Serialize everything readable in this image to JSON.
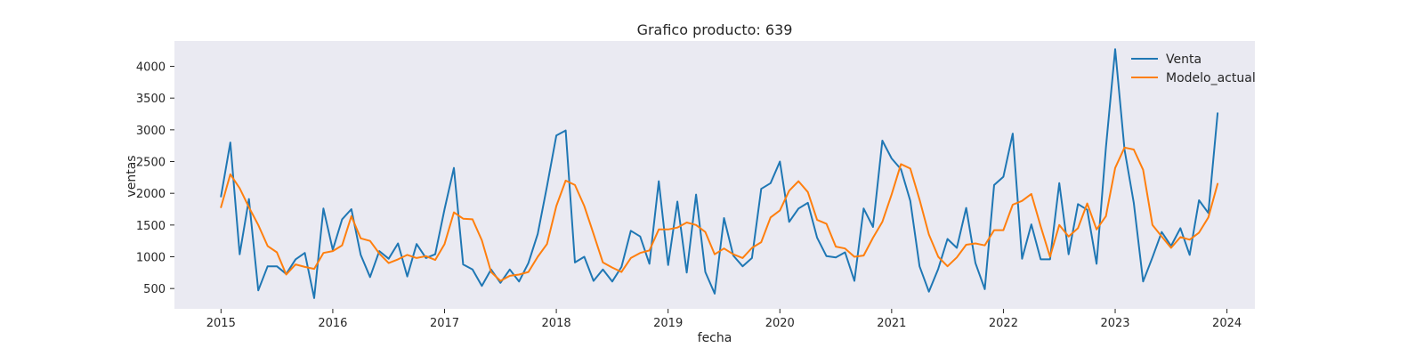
{
  "chart_data": {
    "type": "line",
    "title": "Grafico producto: 639",
    "xlabel": "fecha",
    "ylabel": "ventas",
    "x_ticks": [
      "2015",
      "2016",
      "2017",
      "2018",
      "2019",
      "2020",
      "2021",
      "2022",
      "2023",
      "2024"
    ],
    "y_ticks": [
      500,
      1000,
      1500,
      2000,
      2500,
      3000,
      3500,
      4000
    ],
    "xlim": [
      "2014-08-01",
      "2024-04-01"
    ],
    "ylim": [
      180,
      4400
    ],
    "grid": false,
    "legend_position": "top-right",
    "x": [
      "2015-01",
      "2015-02",
      "2015-03",
      "2015-04",
      "2015-05",
      "2015-06",
      "2015-07",
      "2015-08",
      "2015-09",
      "2015-10",
      "2015-11",
      "2015-12",
      "2016-01",
      "2016-02",
      "2016-03",
      "2016-04",
      "2016-05",
      "2016-06",
      "2016-07",
      "2016-08",
      "2016-09",
      "2016-10",
      "2016-11",
      "2016-12",
      "2017-01",
      "2017-02",
      "2017-03",
      "2017-04",
      "2017-05",
      "2017-06",
      "2017-07",
      "2017-08",
      "2017-09",
      "2017-10",
      "2017-11",
      "2017-12",
      "2018-01",
      "2018-02",
      "2018-03",
      "2018-04",
      "2018-05",
      "2018-06",
      "2018-07",
      "2018-08",
      "2018-09",
      "2018-10",
      "2018-11",
      "2018-12",
      "2019-01",
      "2019-02",
      "2019-03",
      "2019-04",
      "2019-05",
      "2019-06",
      "2019-07",
      "2019-08",
      "2019-09",
      "2019-10",
      "2019-11",
      "2019-12",
      "2020-01",
      "2020-02",
      "2020-03",
      "2020-04",
      "2020-05",
      "2020-06",
      "2020-07",
      "2020-08",
      "2020-09",
      "2020-10",
      "2020-11",
      "2020-12",
      "2021-01",
      "2021-02",
      "2021-03",
      "2021-04",
      "2021-05",
      "2021-06",
      "2021-07",
      "2021-08",
      "2021-09",
      "2021-10",
      "2021-11",
      "2021-12",
      "2022-01",
      "2022-02",
      "2022-03",
      "2022-04",
      "2022-05",
      "2022-06",
      "2022-07",
      "2022-08",
      "2022-09",
      "2022-10",
      "2022-11",
      "2022-12",
      "2023-01",
      "2023-02",
      "2023-03",
      "2023-04",
      "2023-05",
      "2023-06",
      "2023-07",
      "2023-08",
      "2023-09",
      "2023-10",
      "2023-11",
      "2023-12"
    ],
    "series": [
      {
        "name": "Venta",
        "color": "#1f77b4",
        "values": [
          1950,
          2800,
          1040,
          1910,
          470,
          850,
          850,
          730,
          960,
          1060,
          350,
          1760,
          1110,
          1590,
          1750,
          1030,
          680,
          1090,
          970,
          1210,
          690,
          1200,
          980,
          1040,
          1750,
          2400,
          880,
          800,
          540,
          800,
          590,
          800,
          610,
          900,
          1360,
          2110,
          2910,
          2990,
          910,
          1000,
          620,
          800,
          610,
          840,
          1410,
          1320,
          890,
          2190,
          870,
          1870,
          750,
          1980,
          760,
          420,
          1610,
          1020,
          850,
          980,
          2070,
          2160,
          2500,
          1550,
          1760,
          1850,
          1300,
          1010,
          990,
          1070,
          620,
          1760,
          1470,
          2830,
          2550,
          2380,
          1880,
          850,
          450,
          810,
          1280,
          1140,
          1770,
          900,
          490,
          2130,
          2260,
          2940,
          970,
          1510,
          960,
          960,
          2160,
          1040,
          1830,
          1740,
          890,
          2720,
          4270,
          2690,
          1850,
          610,
          990,
          1390,
          1170,
          1450,
          1030,
          1890,
          1690,
          3260
        ]
      },
      {
        "name": "Modelo_actual",
        "color": "#ff7f0e",
        "values": [
          1780,
          2300,
          2080,
          1780,
          1500,
          1170,
          1070,
          720,
          880,
          840,
          810,
          1060,
          1090,
          1180,
          1640,
          1290,
          1250,
          1050,
          900,
          960,
          1030,
          980,
          1010,
          950,
          1200,
          1700,
          1600,
          1590,
          1260,
          760,
          620,
          700,
          720,
          760,
          1000,
          1200,
          1800,
          2200,
          2130,
          1800,
          1360,
          910,
          830,
          760,
          980,
          1060,
          1100,
          1430,
          1430,
          1460,
          1540,
          1500,
          1390,
          1040,
          1130,
          1040,
          980,
          1140,
          1230,
          1620,
          1730,
          2040,
          2190,
          2020,
          1580,
          1520,
          1160,
          1130,
          1000,
          1020,
          1300,
          1550,
          1980,
          2460,
          2390,
          1900,
          1350,
          1000,
          850,
          990,
          1190,
          1210,
          1180,
          1420,
          1420,
          1820,
          1880,
          1990,
          1480,
          1000,
          1500,
          1320,
          1450,
          1840,
          1430,
          1640,
          2400,
          2720,
          2690,
          2370,
          1500,
          1320,
          1140,
          1310,
          1270,
          1380,
          1620,
          2150
        ]
      }
    ]
  }
}
